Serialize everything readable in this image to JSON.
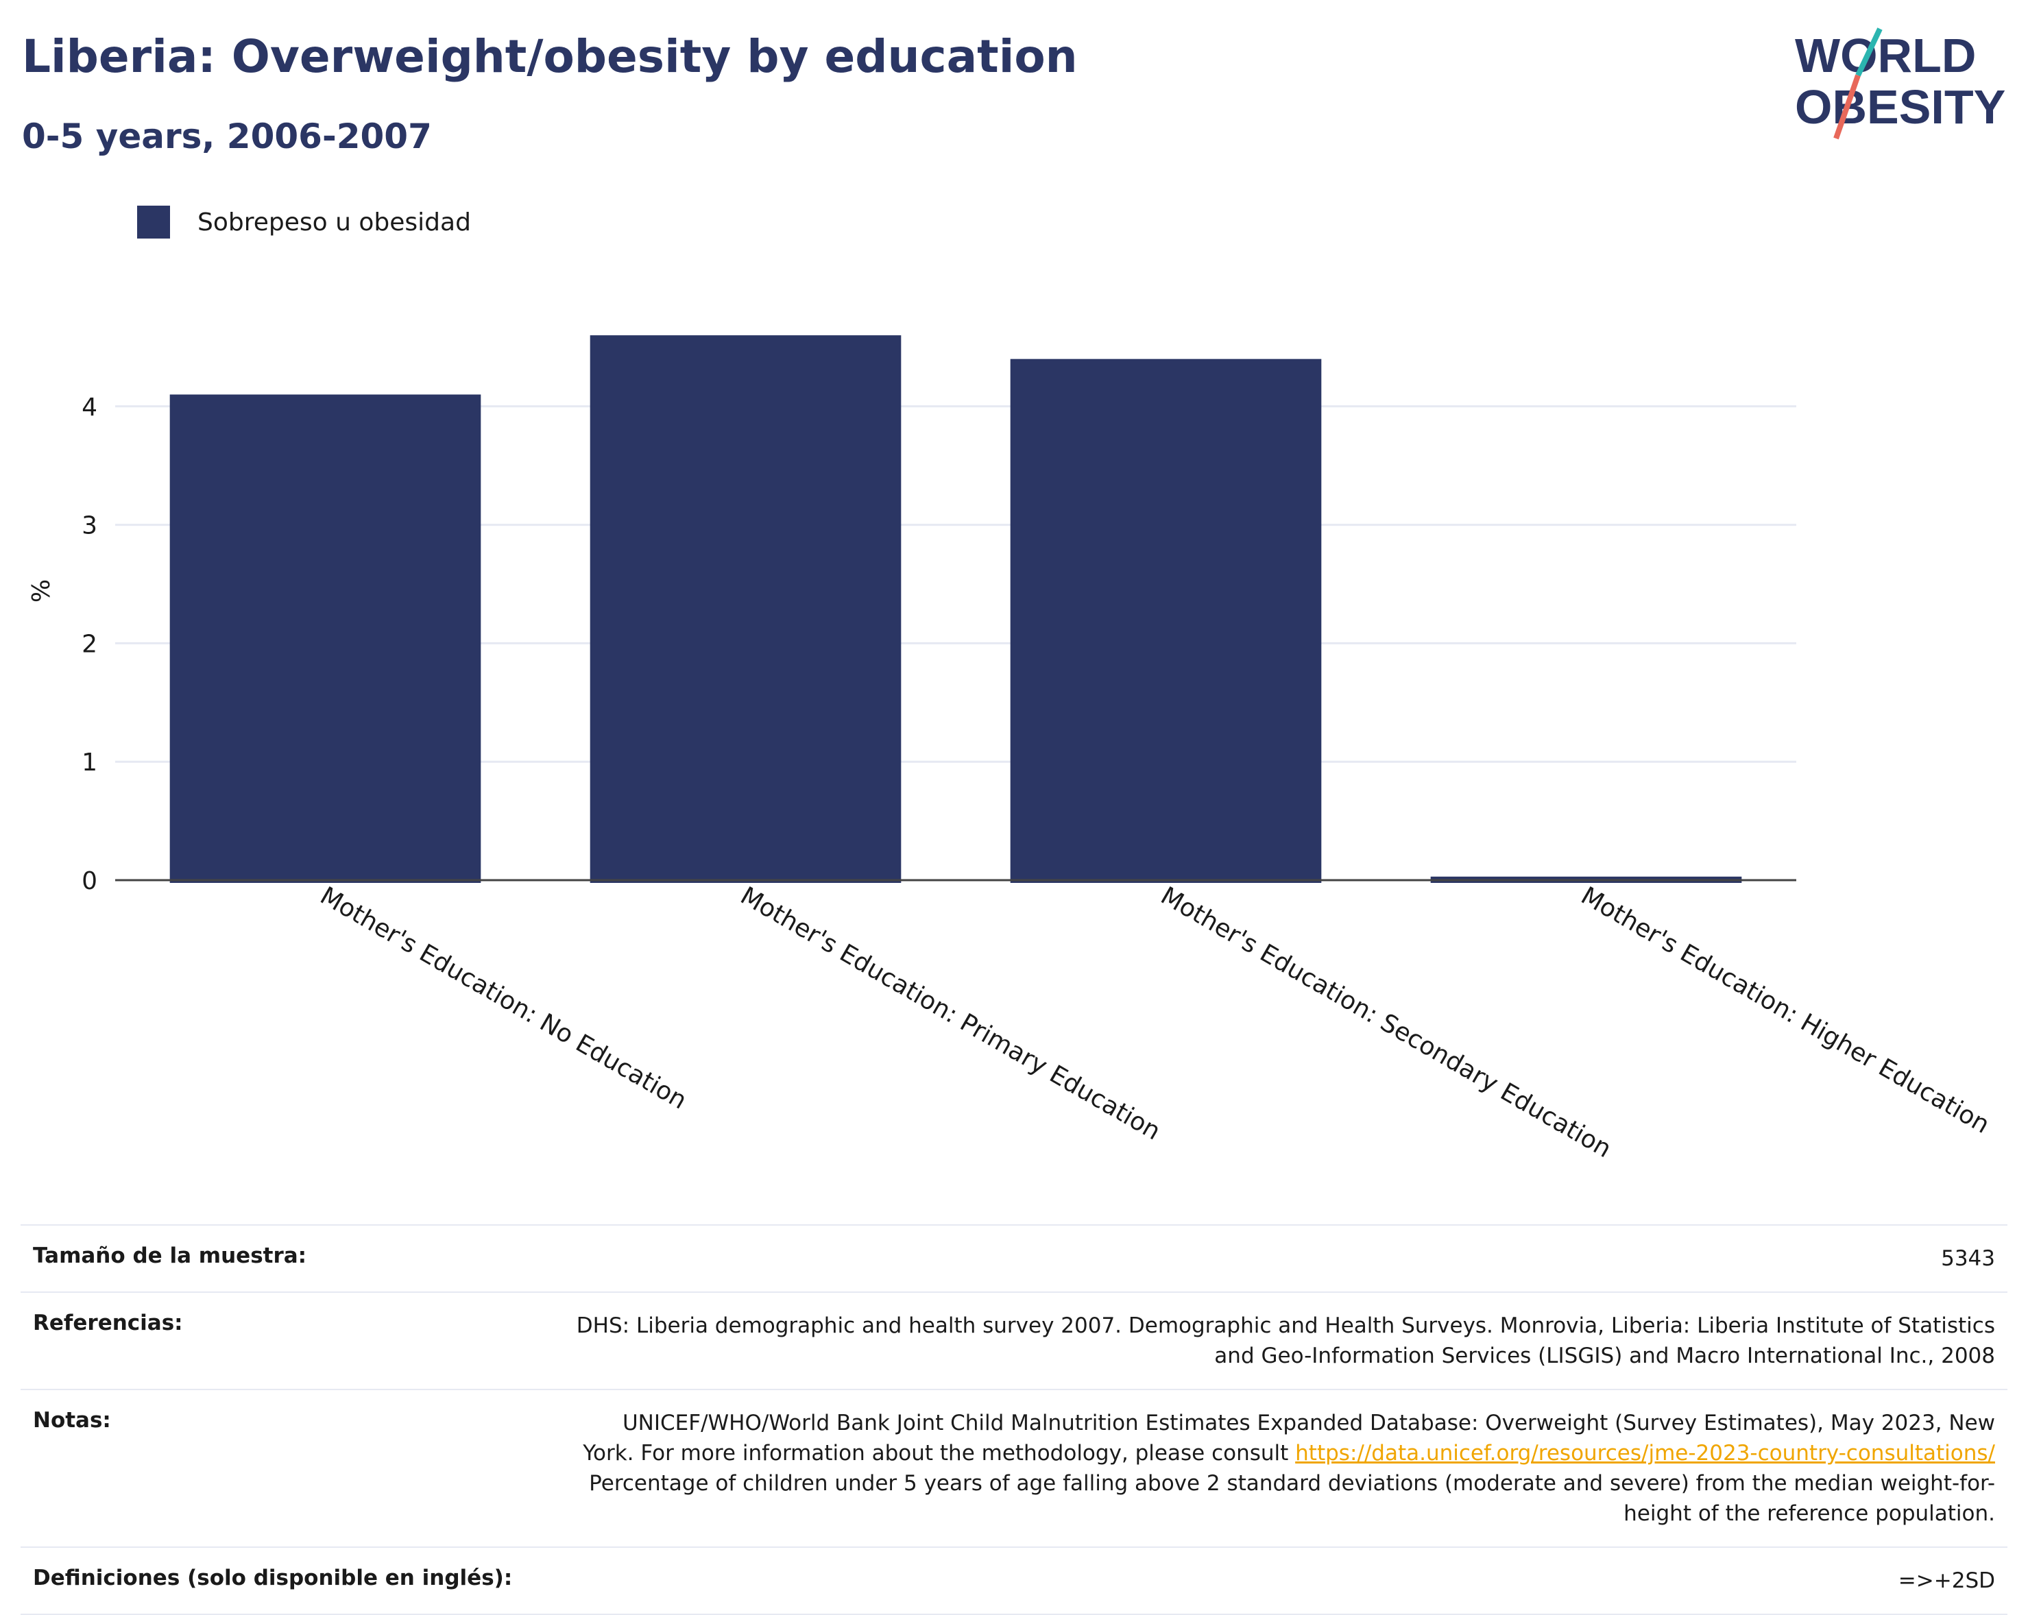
{
  "header": {
    "title": "Liberia: Overweight/obesity by education",
    "subtitle": "0-5 years, 2006-2007"
  },
  "logo": {
    "line1": "WORLD",
    "line2": "OBESITY",
    "colors": {
      "text": "#2b3664",
      "slash_top": "#2bb5b0",
      "slash_bottom": "#e8685a"
    }
  },
  "legend": {
    "label": "Sobrepeso u obesidad",
    "color": "#2b3664"
  },
  "chart_data": {
    "type": "bar",
    "categories": [
      "Mother's Education: No Education",
      "Mother's Education: Primary Education",
      "Mother's Education: Secondary Education",
      "Mother's Education: Higher Education"
    ],
    "series": [
      {
        "name": "Sobrepeso u obesidad",
        "values": [
          4.1,
          4.6,
          4.4,
          0.03
        ],
        "color": "#2b3664"
      }
    ],
    "ylabel": "%",
    "xlabel": "",
    "ylim": [
      0,
      5
    ],
    "yticks": [
      0,
      1,
      2,
      3,
      4
    ],
    "grid": true,
    "legend_position": "top-left"
  },
  "info_table": {
    "rows": [
      {
        "key": "Tamaño de la muestra:",
        "value": "5343"
      },
      {
        "key": "Referencias:",
        "value_lines": [
          "DHS: Liberia demographic and health survey 2007. Demographic and Health Surveys. Monrovia, Liberia: Liberia Institute of Statistics",
          "and Geo-Information Services (LISGIS) and Macro International Inc., 2008"
        ]
      },
      {
        "key": "Notas:",
        "value_lines": [
          "UNICEF/WHO/World Bank Joint Child Malnutrition Estimates Expanded Database: Overweight (Survey Estimates), May 2023, New",
          "York. For more information about the methodology, please consult",
          "Percentage of children under 5 years of age falling above 2 standard deviations (moderate and severe) from the median weight-for-",
          "height of the reference population."
        ],
        "link": "https://data.unicef.org/resources/jme-2023-country-consultations/"
      },
      {
        "key": "Definiciones (solo disponible en inglés):",
        "value": "=>+2SD"
      }
    ]
  }
}
